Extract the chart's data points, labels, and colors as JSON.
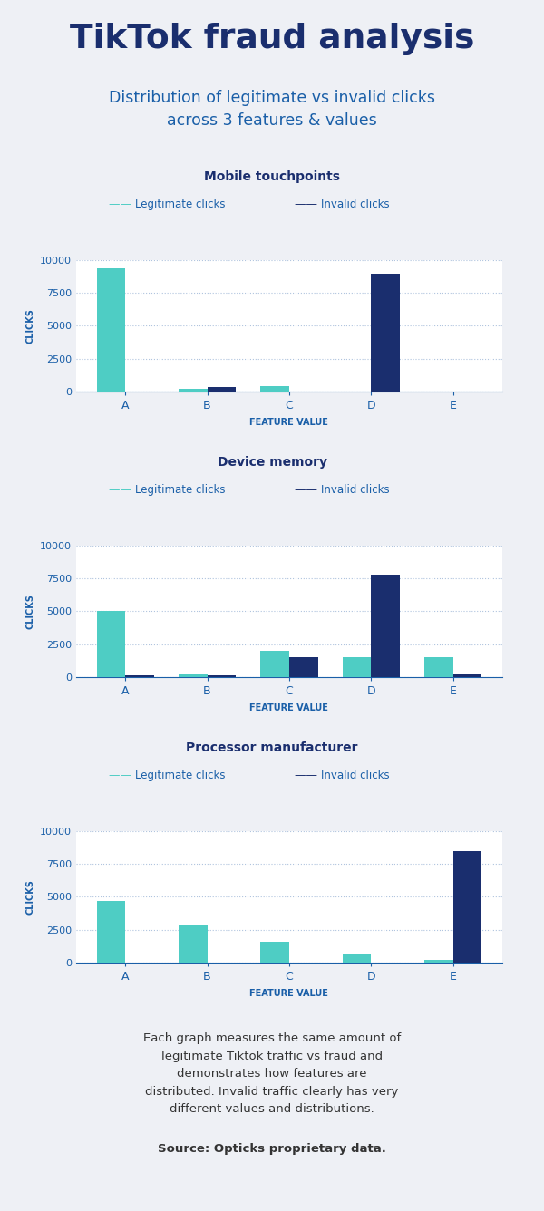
{
  "title": "TikTok fraud analysis",
  "subtitle": "Distribution of legitimate vs invalid clicks\nacross 3 features & values",
  "title_color": "#1a2e6e",
  "subtitle_color": "#1a5fa8",
  "bg_color": "#eef0f5",
  "card_color": "#ffffff",
  "teal_color": "#4ecdc4",
  "navy_color": "#1a2e6e",
  "axis_color": "#1a5fa8",
  "grid_color": "#b0c4de",
  "charts": [
    {
      "title": "Mobile touchpoints",
      "legitimate": [
        9400,
        200,
        400,
        0,
        0
      ],
      "invalid": [
        0,
        300,
        0,
        9000,
        0
      ],
      "categories": [
        "A",
        "B",
        "C",
        "D",
        "E"
      ]
    },
    {
      "title": "Device memory",
      "legitimate": [
        5000,
        200,
        2000,
        1500,
        1500
      ],
      "invalid": [
        100,
        100,
        1500,
        7800,
        200
      ],
      "categories": [
        "A",
        "B",
        "C",
        "D",
        "E"
      ]
    },
    {
      "title": "Processor manufacturer",
      "legitimate": [
        4700,
        2800,
        1600,
        600,
        200
      ],
      "invalid": [
        0,
        0,
        0,
        0,
        8500
      ],
      "categories": [
        "A",
        "B",
        "C",
        "D",
        "E"
      ]
    }
  ],
  "footnote_normal": "Each graph measures the same amount of\nlegitimate Tiktok traffic vs fraud and\ndemonstrates how features are\ndistributed. Invalid traffic clearly has very\ndifferent values and distributions.",
  "footnote_bold": "Source: Opticks proprietary data.",
  "legend_legit": "Legitimate clicks",
  "legend_invalid": "Invalid clicks",
  "ylabel": "CLICKS",
  "xlabel": "FEATURE VALUE",
  "ylim": [
    0,
    10000
  ],
  "yticks": [
    0,
    2500,
    5000,
    7500,
    10000
  ]
}
